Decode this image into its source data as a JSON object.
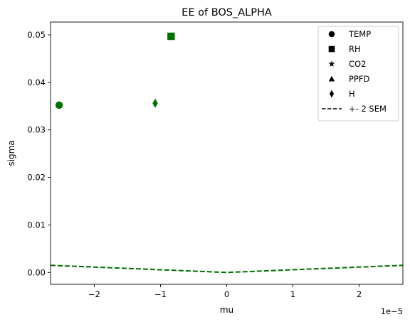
{
  "chart_data": {
    "type": "scatter",
    "title": "EE of BOS_ALPHA",
    "xlabel": "mu",
    "ylabel": "sigma",
    "x_offset_label": "1e−5",
    "xlim": [
      -2.66,
      2.66
    ],
    "ylim": [
      -0.0025,
      0.0527
    ],
    "xticks": [
      {
        "value": -2,
        "label": "−2"
      },
      {
        "value": -1,
        "label": "−1"
      },
      {
        "value": 0,
        "label": "0"
      },
      {
        "value": 1,
        "label": "1"
      },
      {
        "value": 2,
        "label": "2"
      }
    ],
    "yticks": [
      {
        "value": 0.0,
        "label": "0.00"
      },
      {
        "value": 0.01,
        "label": "0.01"
      },
      {
        "value": 0.02,
        "label": "0.02"
      },
      {
        "value": 0.03,
        "label": "0.03"
      },
      {
        "value": 0.04,
        "label": "0.04"
      },
      {
        "value": 0.05,
        "label": "0.05"
      }
    ],
    "points": [
      {
        "name": "TEMP",
        "marker": "circle",
        "x": -2.53,
        "y": 0.0352
      },
      {
        "name": "RH",
        "marker": "square",
        "x": -0.84,
        "y": 0.0497
      },
      {
        "name": "H",
        "marker": "diamond",
        "x": -1.08,
        "y": 0.0356
      }
    ],
    "sem_line": {
      "name": "+- 2 SEM",
      "style": "dashed",
      "x": [
        -2.66,
        -1.5,
        -0.5,
        0,
        0.5,
        1.5,
        2.66
      ],
      "y": [
        0.0015,
        0.00085,
        0.00028,
        0.0,
        0.00028,
        0.00085,
        0.0015
      ]
    },
    "legend": {
      "position": "top-right",
      "entries": [
        {
          "label": "TEMP",
          "marker": "circle"
        },
        {
          "label": "RH",
          "marker": "square"
        },
        {
          "label": "CO2",
          "marker": "star"
        },
        {
          "label": "PPFD",
          "marker": "triangle"
        },
        {
          "label": "H",
          "marker": "diamond"
        },
        {
          "label": "+- 2 SEM",
          "marker": "dash"
        }
      ]
    },
    "colors": {
      "points": "#007000",
      "line": "#007000",
      "legend_marker": "#000000"
    },
    "grid": false
  }
}
